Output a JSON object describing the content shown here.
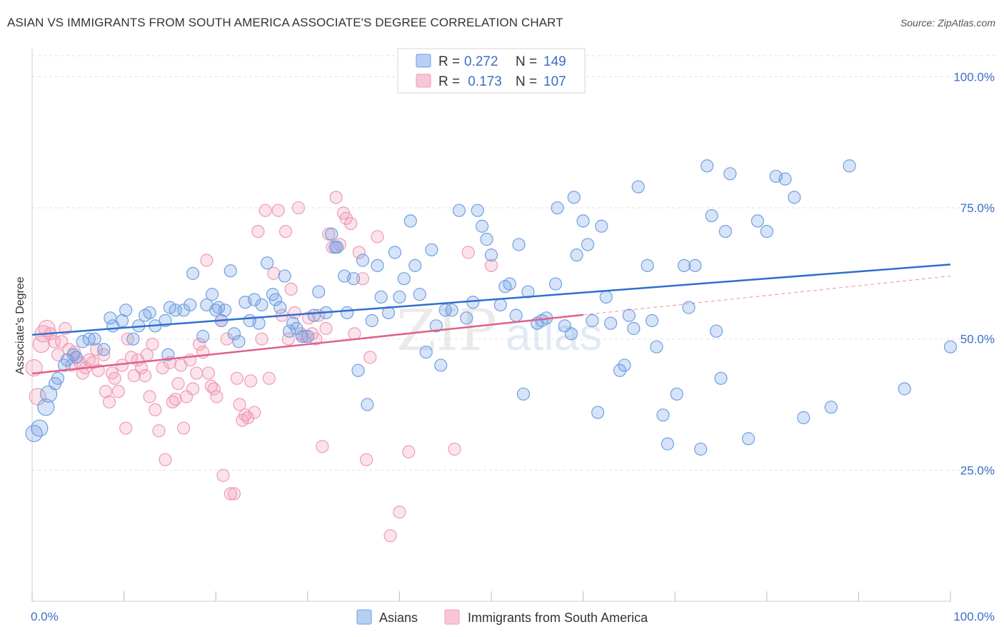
{
  "title": "ASIAN VS IMMIGRANTS FROM SOUTH AMERICA ASSOCIATE'S DEGREE CORRELATION CHART",
  "source": "Source: ZipAtlas.com",
  "watermark": {
    "zip": "ZIP",
    "atlas": "atlas"
  },
  "colors": {
    "asian": "#6f9fe3",
    "asian_line": "#2f6fce",
    "sa": "#f09ab5",
    "sa_line": "#e0608a",
    "grid": "#e2e2e2",
    "tick": "#3a6fc4"
  },
  "legend": {
    "rows": [
      {
        "r_label": "R = ",
        "r_value": "0.272",
        "n_label": "N = ",
        "n_value": "149"
      },
      {
        "r_label": "R = ",
        "r_value": " 0.173",
        "n_label": "N = ",
        "n_value": "107"
      }
    ]
  },
  "bottom_legend": {
    "asian": "Asians",
    "sa": "Immigrants from South America"
  },
  "chart_data": {
    "type": "scatter",
    "title": "ASIAN VS IMMIGRANTS FROM SOUTH AMERICA ASSOCIATE'S DEGREE CORRELATION CHART",
    "xlabel": "",
    "ylabel": "Associate's Degree",
    "xlim": [
      0,
      100
    ],
    "ylim": [
      0,
      104
    ],
    "x_tick_labels": [
      "0.0%",
      "100.0%"
    ],
    "y_ticks": [
      25,
      50,
      75,
      100
    ],
    "y_tick_labels": [
      "25.0%",
      "50.0%",
      "75.0%",
      "100.0%"
    ],
    "grid": true,
    "legend_position": "top-center",
    "series": [
      {
        "name": "Asians",
        "R": 0.272,
        "N": 149,
        "trend": {
          "x": [
            0,
            100
          ],
          "y": [
            50.8,
            64.2
          ]
        },
        "points": [
          [
            0.2,
            32.0
          ],
          [
            0.8,
            33.0
          ],
          [
            1.5,
            37.0
          ],
          [
            1.8,
            39.5
          ],
          [
            2.5,
            41.5
          ],
          [
            2.8,
            42.5
          ],
          [
            3.5,
            45.0
          ],
          [
            3.8,
            46.0
          ],
          [
            4.5,
            47.0
          ],
          [
            4.8,
            46.5
          ],
          [
            5.5,
            49.5
          ],
          [
            6.2,
            50.0
          ],
          [
            6.8,
            50.0
          ],
          [
            7.8,
            48.0
          ],
          [
            8.5,
            54.0
          ],
          [
            8.8,
            52.5
          ],
          [
            9.8,
            53.5
          ],
          [
            10.2,
            55.5
          ],
          [
            11,
            50.0
          ],
          [
            11.6,
            52.5
          ],
          [
            12.3,
            54.5
          ],
          [
            12.8,
            55.0
          ],
          [
            13.4,
            52.5
          ],
          [
            14.5,
            53.5
          ],
          [
            14.8,
            47.0
          ],
          [
            15,
            56.0
          ],
          [
            15.6,
            55.5
          ],
          [
            16.5,
            55.5
          ],
          [
            17.2,
            56.5
          ],
          [
            17.5,
            62.5
          ],
          [
            18.6,
            50.5
          ],
          [
            19,
            56.5
          ],
          [
            19.6,
            58.5
          ],
          [
            20,
            55.5
          ],
          [
            20.3,
            56.0
          ],
          [
            20.6,
            53.5
          ],
          [
            21,
            55.5
          ],
          [
            21.6,
            63.0
          ],
          [
            22,
            51.0
          ],
          [
            22.5,
            49.5
          ],
          [
            23.2,
            57.0
          ],
          [
            23.7,
            53.5
          ],
          [
            24.2,
            57.5
          ],
          [
            24.7,
            53.0
          ],
          [
            25,
            56.5
          ],
          [
            25.6,
            64.5
          ],
          [
            26.2,
            58.5
          ],
          [
            26.5,
            57.5
          ],
          [
            27,
            56.0
          ],
          [
            27.5,
            62.0
          ],
          [
            28,
            51.5
          ],
          [
            28.4,
            53.0
          ],
          [
            28.8,
            52.0
          ],
          [
            29.4,
            50.5
          ],
          [
            30,
            50.5
          ],
          [
            30.7,
            54.5
          ],
          [
            31.2,
            59.0
          ],
          [
            32,
            55.0
          ],
          [
            32.6,
            70.0
          ],
          [
            33,
            67.5
          ],
          [
            33.2,
            67.5
          ],
          [
            34,
            62.0
          ],
          [
            34.3,
            55.0
          ],
          [
            35,
            61.5
          ],
          [
            35.5,
            44.0
          ],
          [
            36,
            65.0
          ],
          [
            36.5,
            37.5
          ],
          [
            37,
            53.5
          ],
          [
            37.6,
            64.0
          ],
          [
            38,
            58.0
          ],
          [
            38.8,
            55.0
          ],
          [
            39.5,
            66.5
          ],
          [
            40,
            58.0
          ],
          [
            40.5,
            61.5
          ],
          [
            41.2,
            72.5
          ],
          [
            41.7,
            64.0
          ],
          [
            42.2,
            58.5
          ],
          [
            42.9,
            47.5
          ],
          [
            43.5,
            67.0
          ],
          [
            44,
            52.5
          ],
          [
            44.5,
            45.0
          ],
          [
            45,
            55.5
          ],
          [
            45.7,
            55.5
          ],
          [
            46.5,
            74.5
          ],
          [
            47.3,
            54.0
          ],
          [
            48,
            57.0
          ],
          [
            48.5,
            74.5
          ],
          [
            49,
            71.5
          ],
          [
            49.5,
            69.0
          ],
          [
            50,
            66.0
          ],
          [
            51,
            56.5
          ],
          [
            51.5,
            60.0
          ],
          [
            52,
            60.5
          ],
          [
            52.7,
            54.5
          ],
          [
            53,
            68.0
          ],
          [
            53.5,
            39.5
          ],
          [
            54,
            59.0
          ],
          [
            55,
            53.0
          ],
          [
            55.5,
            53.5
          ],
          [
            56,
            54.0
          ],
          [
            57,
            60.5
          ],
          [
            57.2,
            75.0
          ],
          [
            58,
            52.5
          ],
          [
            58.7,
            51.0
          ],
          [
            59,
            77.0
          ],
          [
            59.3,
            66.0
          ],
          [
            60,
            72.5
          ],
          [
            60.5,
            68.0
          ],
          [
            61,
            53.5
          ],
          [
            61.6,
            36.0
          ],
          [
            62,
            71.5
          ],
          [
            62.5,
            58.0
          ],
          [
            63,
            53.0
          ],
          [
            64,
            44.0
          ],
          [
            64.5,
            45.0
          ],
          [
            65,
            54.5
          ],
          [
            65.5,
            52.0
          ],
          [
            66,
            79.0
          ],
          [
            67,
            64.0
          ],
          [
            67.5,
            53.5
          ],
          [
            68,
            48.5
          ],
          [
            68.7,
            35.5
          ],
          [
            69.2,
            30.0
          ],
          [
            70.2,
            39.5
          ],
          [
            71,
            64.0
          ],
          [
            71.5,
            56.0
          ],
          [
            72.2,
            64.0
          ],
          [
            72.8,
            29.0
          ],
          [
            73.5,
            83.0
          ],
          [
            74,
            73.5
          ],
          [
            74.5,
            51.5
          ],
          [
            75,
            42.5
          ],
          [
            75.5,
            70.5
          ],
          [
            76,
            81.5
          ],
          [
            78,
            31.0
          ],
          [
            79,
            72.5
          ],
          [
            80,
            70.5
          ],
          [
            81,
            81.0
          ],
          [
            82,
            80.5
          ],
          [
            83,
            77.0
          ],
          [
            84,
            35.0
          ],
          [
            87,
            37.0
          ],
          [
            89,
            83.0
          ],
          [
            95,
            40.5
          ],
          [
            100,
            48.5
          ]
        ]
      },
      {
        "name": "Immigrants from South America",
        "R": 0.173,
        "N": 107,
        "trend": {
          "x": [
            0,
            60
          ],
          "y": [
            43.4,
            54.6
          ]
        },
        "trend_extension": {
          "x": [
            60,
            100
          ],
          "y": [
            54.6,
            62.0
          ]
        },
        "points": [
          [
            0.2,
            44.5
          ],
          [
            0.6,
            39.0
          ],
          [
            1,
            49.0
          ],
          [
            1.2,
            51.0
          ],
          [
            1.6,
            52.0
          ],
          [
            2,
            51.0
          ],
          [
            2.4,
            49.5
          ],
          [
            2.8,
            47.0
          ],
          [
            3.2,
            49.5
          ],
          [
            3.6,
            52.0
          ],
          [
            4,
            48.0
          ],
          [
            4.3,
            45.0
          ],
          [
            4.6,
            47.5
          ],
          [
            4.8,
            46.5
          ],
          [
            5.2,
            45.5
          ],
          [
            5.5,
            43.5
          ],
          [
            5.8,
            44.5
          ],
          [
            6.2,
            46.0
          ],
          [
            6.6,
            45.5
          ],
          [
            7,
            48.0
          ],
          [
            7.2,
            44.0
          ],
          [
            7.8,
            47.0
          ],
          [
            8,
            40.0
          ],
          [
            8.4,
            38.0
          ],
          [
            8.7,
            43.5
          ],
          [
            9,
            42.5
          ],
          [
            9.4,
            40.0
          ],
          [
            9.8,
            45.0
          ],
          [
            10.2,
            33.0
          ],
          [
            10.4,
            50.0
          ],
          [
            10.8,
            46.5
          ],
          [
            11.1,
            43.0
          ],
          [
            11.5,
            46.0
          ],
          [
            11.9,
            44.5
          ],
          [
            12.3,
            43.0
          ],
          [
            12.5,
            47.0
          ],
          [
            12.8,
            39.0
          ],
          [
            13.1,
            49.0
          ],
          [
            13.4,
            36.5
          ],
          [
            13.8,
            32.5
          ],
          [
            14.2,
            44.5
          ],
          [
            14.5,
            27.0
          ],
          [
            15,
            45.5
          ],
          [
            15.3,
            38.0
          ],
          [
            15.6,
            38.5
          ],
          [
            15.9,
            41.5
          ],
          [
            16.2,
            45.0
          ],
          [
            16.5,
            33.0
          ],
          [
            16.8,
            39.0
          ],
          [
            17.2,
            46.0
          ],
          [
            17.5,
            40.5
          ],
          [
            17.9,
            43.5
          ],
          [
            18.2,
            49.0
          ],
          [
            18.6,
            47.5
          ],
          [
            19,
            65.0
          ],
          [
            19.2,
            43.5
          ],
          [
            19.5,
            41.0
          ],
          [
            19.8,
            40.5
          ],
          [
            20.1,
            39.0
          ],
          [
            20.6,
            53.5
          ],
          [
            20.8,
            24.0
          ],
          [
            21.2,
            50.0
          ],
          [
            21.6,
            20.5
          ],
          [
            22,
            20.5
          ],
          [
            22.3,
            42.5
          ],
          [
            22.6,
            37.5
          ],
          [
            22.9,
            34.5
          ],
          [
            23.2,
            35.5
          ],
          [
            23.5,
            35.0
          ],
          [
            23.8,
            42.0
          ],
          [
            24.2,
            36.0
          ],
          [
            24.6,
            70.5
          ],
          [
            25,
            50.0
          ],
          [
            25.4,
            74.5
          ],
          [
            25.8,
            42.5
          ],
          [
            26.3,
            62.5
          ],
          [
            26.8,
            74.5
          ],
          [
            27.2,
            54.5
          ],
          [
            27.6,
            70.5
          ],
          [
            27.9,
            50.0
          ],
          [
            28.2,
            59.5
          ],
          [
            28.6,
            55.0
          ],
          [
            29,
            75.0
          ],
          [
            29.3,
            51.0
          ],
          [
            29.7,
            50.5
          ],
          [
            30.1,
            54.0
          ],
          [
            30.5,
            51.0
          ],
          [
            30.9,
            50.0
          ],
          [
            31.2,
            54.5
          ],
          [
            31.6,
            29.5
          ],
          [
            32,
            52.0
          ],
          [
            32.3,
            70.0
          ],
          [
            32.7,
            67.5
          ],
          [
            33.1,
            77.0
          ],
          [
            33.5,
            68.0
          ],
          [
            33.9,
            74.0
          ],
          [
            34.2,
            73.0
          ],
          [
            34.7,
            72.0
          ],
          [
            35.1,
            51.0
          ],
          [
            35.6,
            66.5
          ],
          [
            36,
            61.5
          ],
          [
            36.4,
            27.0
          ],
          [
            36.8,
            46.5
          ],
          [
            37.6,
            69.5
          ],
          [
            39,
            12.5
          ],
          [
            40,
            17.0
          ],
          [
            41,
            28.5
          ],
          [
            46,
            29.0
          ],
          [
            47.5,
            66.5
          ],
          [
            50,
            64.0
          ]
        ]
      }
    ]
  }
}
